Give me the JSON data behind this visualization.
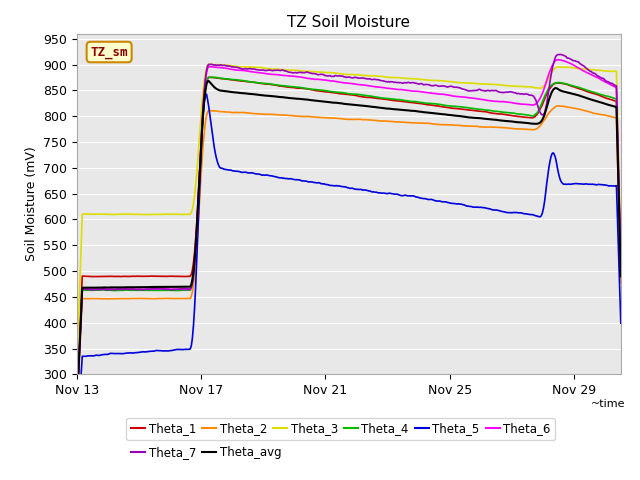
{
  "title": "TZ Soil Moisture",
  "xlabel": "~time",
  "ylabel": "Soil Moisture (mV)",
  "ylim": [
    300,
    960
  ],
  "yticks": [
    300,
    350,
    400,
    450,
    500,
    550,
    600,
    650,
    700,
    750,
    800,
    850,
    900,
    950
  ],
  "plot_bg": "#e8e8e8",
  "legend_box_label": "TZ_sm",
  "legend_box_bg": "#ffffcc",
  "legend_box_edge": "#cc8800",
  "series_order": [
    "Theta_1",
    "Theta_2",
    "Theta_3",
    "Theta_4",
    "Theta_5",
    "Theta_6",
    "Theta_7",
    "Theta_avg"
  ],
  "series": {
    "Theta_1": {
      "color": "#cc0000",
      "lw": 1.2
    },
    "Theta_2": {
      "color": "#ff8800",
      "lw": 1.2
    },
    "Theta_3": {
      "color": "#dddd00",
      "lw": 1.2
    },
    "Theta_4": {
      "color": "#00bb00",
      "lw": 1.2
    },
    "Theta_5": {
      "color": "#0000dd",
      "lw": 1.2
    },
    "Theta_6": {
      "color": "#ff00ff",
      "lw": 1.2
    },
    "Theta_7": {
      "color": "#9900bb",
      "lw": 1.2
    },
    "Theta_avg": {
      "color": "#000000",
      "lw": 1.5
    }
  },
  "x_tick_labels": [
    "Nov 13",
    "Nov 17",
    "Nov 21",
    "Nov 25",
    "Nov 29"
  ],
  "x_tick_positions": [
    0,
    4,
    8,
    12,
    16
  ],
  "xlim": [
    0,
    17.5
  ]
}
